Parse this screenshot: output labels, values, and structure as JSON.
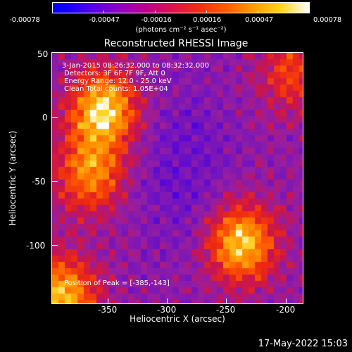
{
  "colorbar": {
    "tick_labels": [
      "-0.00078",
      "-0.00047",
      "-0.00016",
      "0.00016",
      "0.00047",
      "0.00078"
    ],
    "units": "(photons cm⁻² s⁻¹ asec⁻²)",
    "colors": [
      "#0000ff",
      "#8e00c4",
      "#e01545",
      "#ff5e00",
      "#ffd41a",
      "#ffffff"
    ]
  },
  "plot": {
    "title": "Reconstructed RHESSI Image",
    "xlabel": "Heliocentric X (arcsec)",
    "ylabel": "Heliocentric Y (arcsec)",
    "x_ticks": [
      "-350",
      "-300",
      "-250",
      "-200"
    ],
    "y_ticks": [
      "50",
      "0",
      "-50",
      "-100"
    ],
    "annotations": [
      "3-Jan-2015 08:26:32.000 to 08:32:32.000",
      "Detectors: 3F 6F 7F 9F, Att 0",
      "Energy Range: 12.0 - 25.0 keV",
      "Clean      Total counts: 1.05E+04"
    ],
    "peak_label": "Position of Peak = [-385,-143]"
  },
  "timestamp": "17-May-2022 15:03",
  "chart_data": {
    "type": "heatmap",
    "title": "Reconstructed RHESSI Image",
    "xlabel": "Heliocentric X (arcsec)",
    "ylabel": "Heliocentric Y (arcsec)",
    "xlim": [
      -392,
      -197
    ],
    "ylim": [
      -145,
      50
    ],
    "x_ticks": [
      -350,
      -300,
      -250,
      -200
    ],
    "y_ticks": [
      50,
      0,
      -50,
      -100
    ],
    "colorbar_range": [
      -0.00078,
      0.00078
    ],
    "colorbar_ticks": [
      -0.00078,
      -0.00047,
      -0.00016,
      0.00016,
      0.00047,
      0.00078
    ],
    "units": "photons cm^-2 s^-1 asec^-2",
    "peak_position": [
      -385,
      -143
    ],
    "time_range": "3-Jan-2015 08:26:32.000 to 08:32:32.000",
    "detectors": "3F 6F 7F 9F, Att 0",
    "energy_range_keV": [
      12.0,
      25.0
    ],
    "method": "Clean",
    "total_counts": 10500,
    "sources": [
      {
        "x": -352,
        "y": 5,
        "relative_intensity": 1.0
      },
      {
        "x": -362,
        "y": -45,
        "relative_intensity": 0.7
      },
      {
        "x": -245,
        "y": -98,
        "relative_intensity": 0.95
      },
      {
        "x": -385,
        "y": -140,
        "relative_intensity": 0.9
      },
      {
        "x": -205,
        "y": 35,
        "relative_intensity": 0.45
      }
    ]
  }
}
